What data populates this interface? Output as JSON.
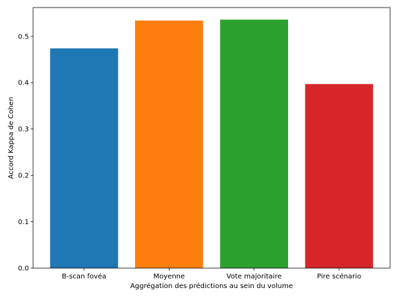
{
  "chart_data": {
    "type": "bar",
    "title": "",
    "xlabel": "Aggrégation des prédictions au sein du volume",
    "ylabel": "Accord Kappa de Cohen",
    "categories": [
      "B-scan fovéa",
      "Moyenne",
      "Vote majoritaire",
      "Pire scénario"
    ],
    "values": [
      0.474,
      0.534,
      0.536,
      0.397
    ],
    "colors": [
      "#1f77b4",
      "#ff7f0e",
      "#2ca02c",
      "#d62728"
    ],
    "ylim": [
      0,
      0.562
    ],
    "yticks": [
      "0.0",
      "0.1",
      "0.2",
      "0.3",
      "0.4",
      "0.5"
    ],
    "grid": false
  }
}
